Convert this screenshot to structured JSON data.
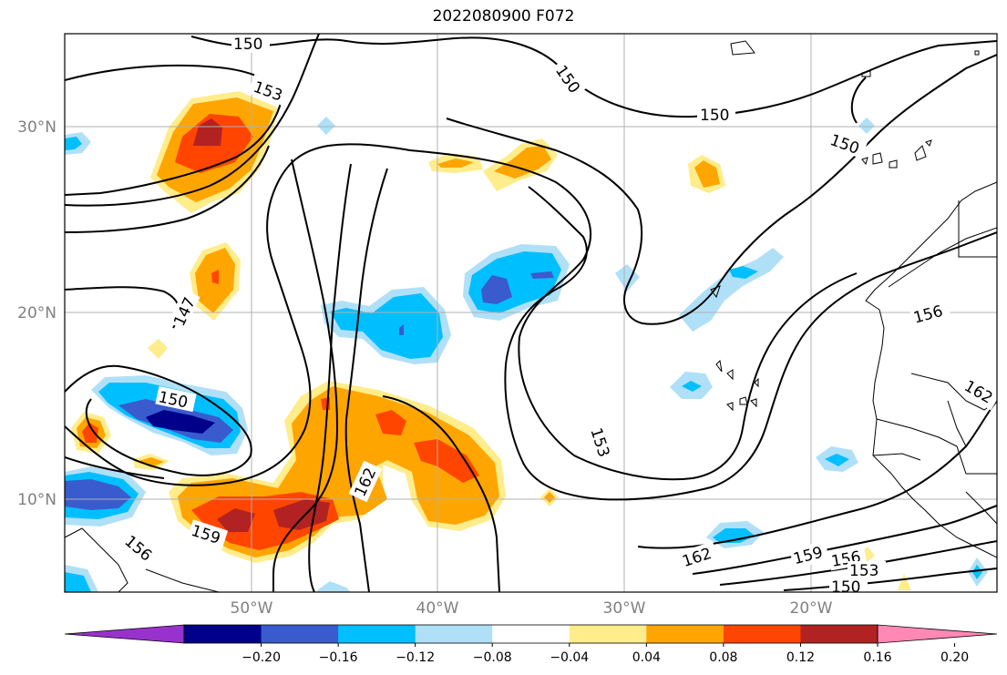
{
  "title": "2022080900 F072",
  "axes": {
    "x_ticks": [
      "50°W",
      "40°W",
      "30°W",
      "20°W"
    ],
    "y_ticks": [
      "30°N",
      "20°N",
      "10°N"
    ]
  },
  "contour_labels": [
    "150",
    "153",
    "150",
    "150",
    "150",
    "147",
    "150",
    "153",
    "156",
    "162",
    "162",
    "159",
    "159",
    "156",
    "153",
    "150",
    "156",
    "162"
  ],
  "colorbar": {
    "tick_labels": [
      "−0.20",
      "−0.16",
      "−0.12",
      "−0.08",
      "−0.04",
      "0.04",
      "0.08",
      "0.12",
      "0.16",
      "0.20"
    ],
    "colors": [
      "#9932cc",
      "#00008b",
      "#3a5bcd",
      "#00bfff",
      "#b0e0f8",
      "#ffffff",
      "#ffec8b",
      "#ffa500",
      "#ff4500",
      "#b22222",
      "#ff88b4"
    ]
  }
}
